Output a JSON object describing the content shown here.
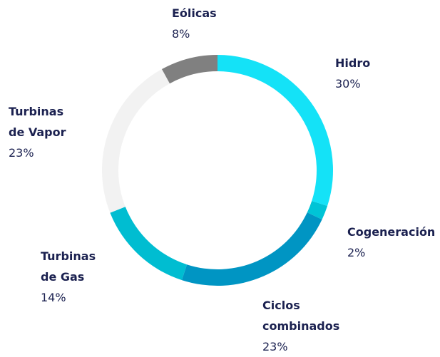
{
  "chart_data": {
    "type": "donut",
    "categories": [
      "Hidro",
      "Cogeneración",
      "Ciclos combinados",
      "Turbinas de Gas",
      "Turbinas de Vapor",
      "Eólicas"
    ],
    "values": [
      30,
      2,
      23,
      14,
      23,
      8
    ],
    "value_labels": [
      "30%",
      "2%",
      "23%",
      "14%",
      "23%",
      "8%"
    ],
    "colors": [
      "#14e2f7",
      "#00c4d6",
      "#0095c3",
      "#00bdd1",
      "#f2f2f2",
      "#808080"
    ]
  }
}
